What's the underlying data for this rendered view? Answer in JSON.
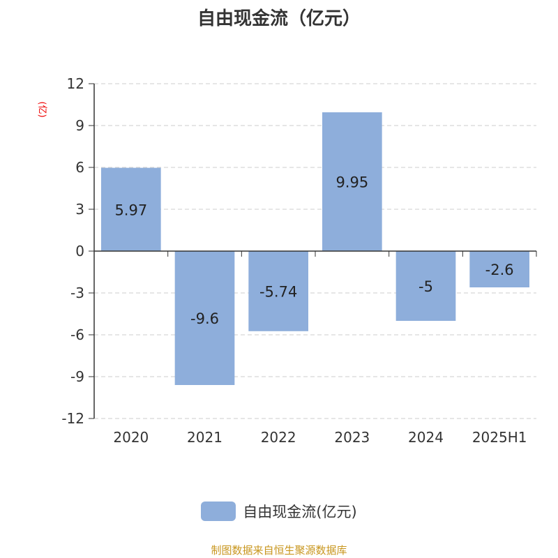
{
  "chart_data": {
    "type": "bar",
    "title": "自由现金流（亿元）",
    "ylabel": "(亿)",
    "categories": [
      "2020",
      "2021",
      "2022",
      "2023",
      "2024",
      "2025H1"
    ],
    "series": [
      {
        "name": "自由现金流(亿元)",
        "values": [
          5.97,
          -9.6,
          -5.74,
          9.95,
          -5,
          -2.6
        ],
        "labels": [
          "5.97",
          "-9.6",
          "-5.74",
          "9.95",
          "-5",
          "-2.6"
        ],
        "color": "#8eaedb"
      }
    ],
    "ylim": [
      -12,
      12
    ],
    "yticks": [
      12,
      9,
      6,
      3,
      0,
      -3,
      -6,
      -9,
      -12
    ],
    "grid": true,
    "legend": "bottom"
  },
  "source": "制图数据来自恒生聚源数据库"
}
